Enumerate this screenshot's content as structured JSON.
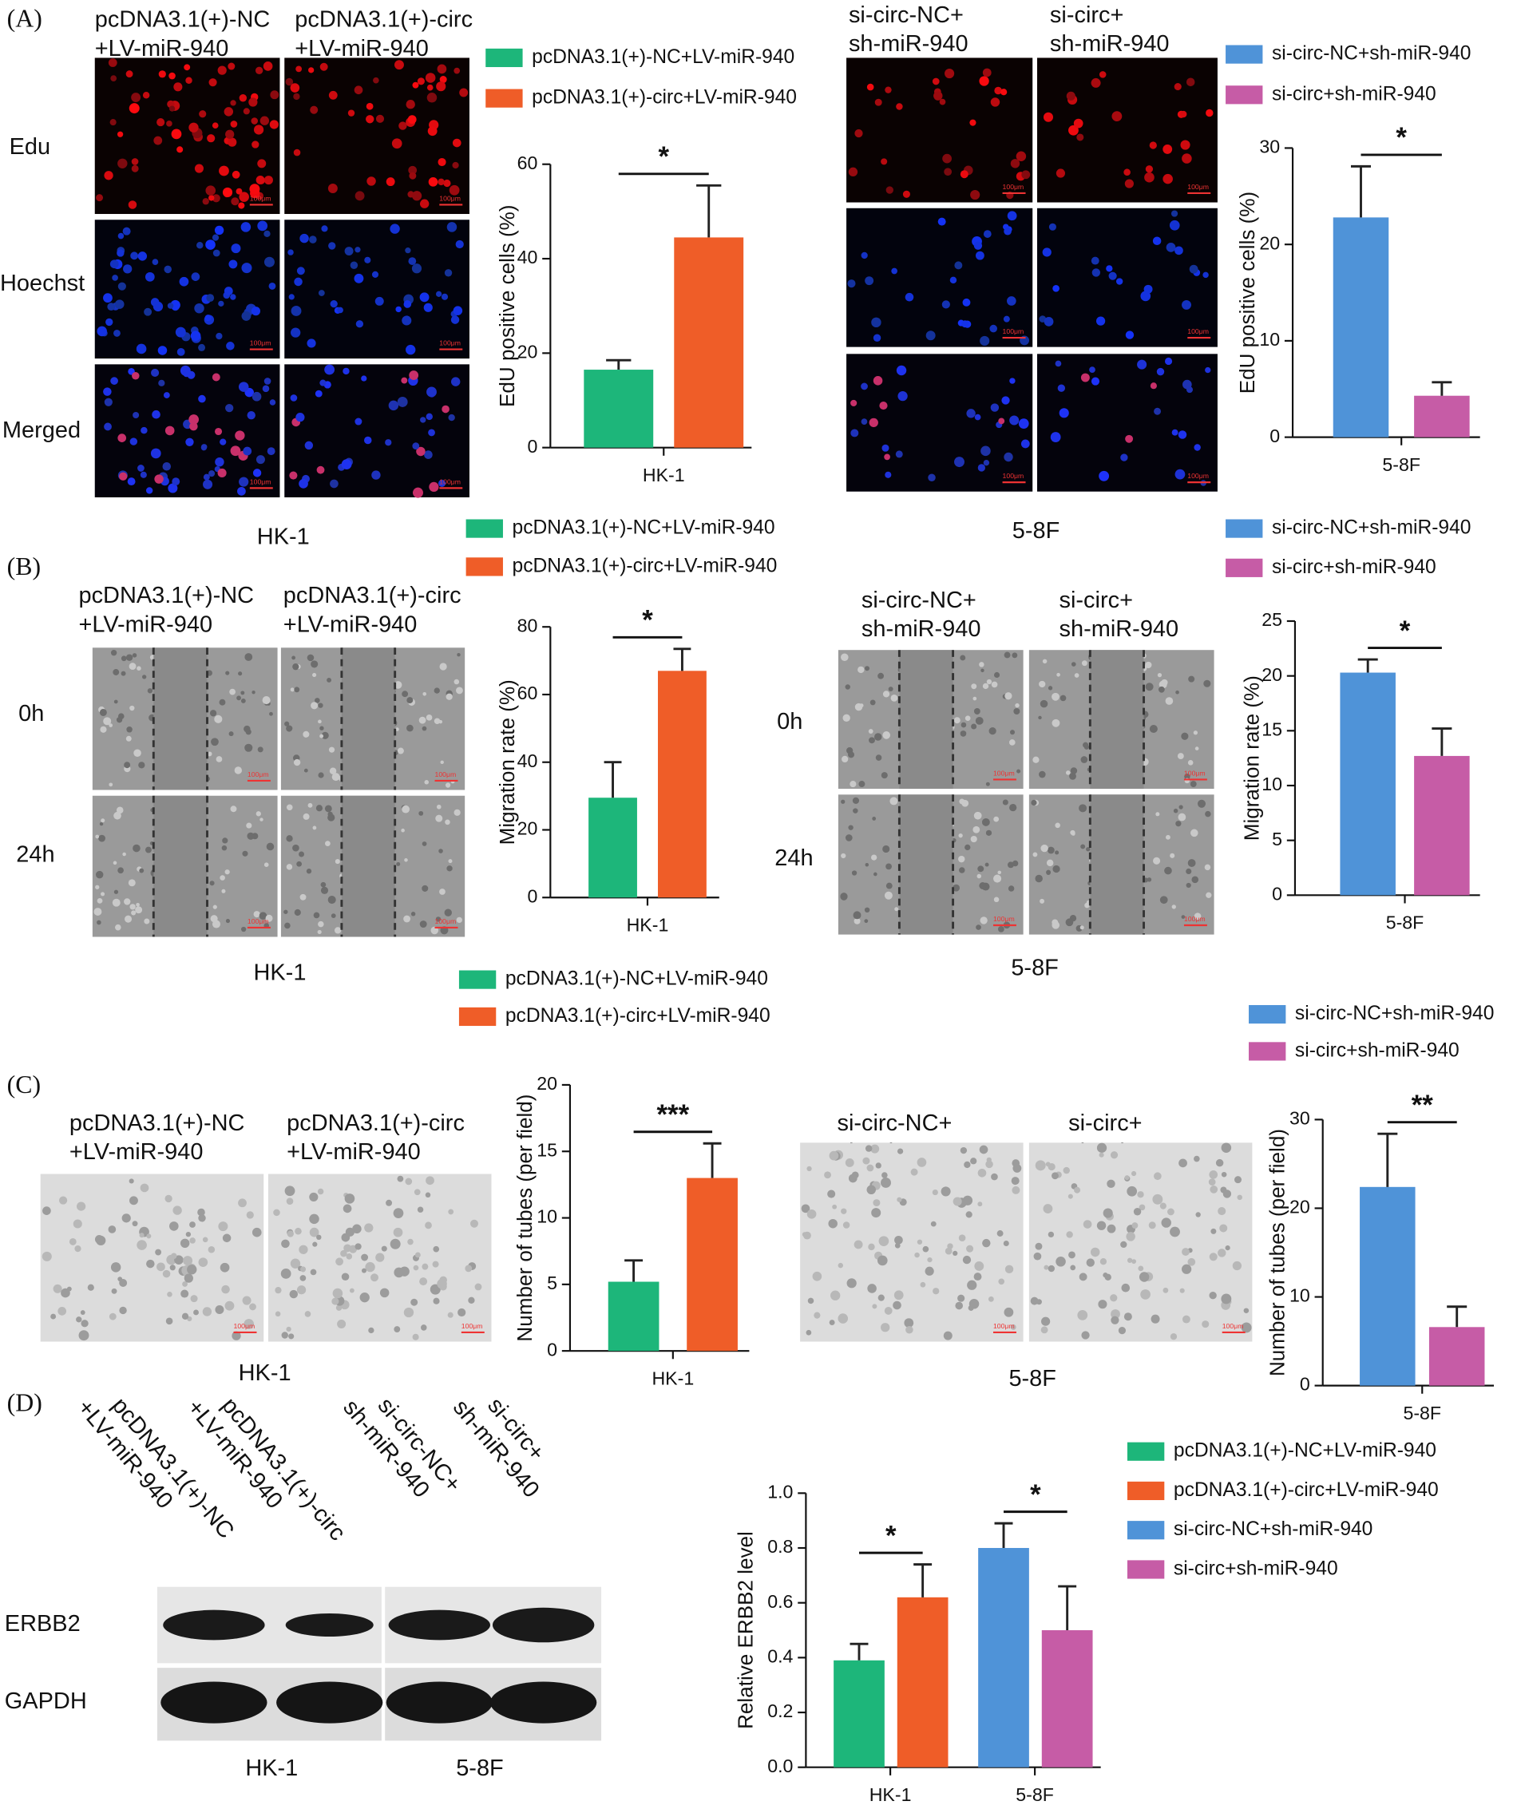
{
  "panel_labels": [
    "(A)",
    "(B)",
    "(C)",
    "(D)"
  ],
  "image_columns": {
    "nc": [
      "pcDNA3.1(+)-NC",
      "+LV-miR-940"
    ],
    "circ": [
      "pcDNA3.1(+)-circ",
      "+LV-miR-940"
    ],
    "si_nc": [
      "si-circ-NC+",
      "sh-miR-940"
    ],
    "si": [
      "si-circ+",
      "sh-miR-940"
    ]
  },
  "cell_lines": [
    "HK-1",
    "5-8F"
  ],
  "edu_rows": [
    "Edu",
    "Hoechst",
    "Merged"
  ],
  "time_rows": [
    "0h",
    "24h"
  ],
  "blot_rows": [
    "ERBB2",
    "GAPDH"
  ],
  "scale_bar": "100μm",
  "chart_data": [
    {
      "type": "bar",
      "ylabel": "EdU positive cells (%)",
      "categories": [
        "HK-1"
      ],
      "series": [
        {
          "name": "pcDNA3.1(+)-NC+LV-miR-940",
          "color": "#1db67a",
          "values": [
            16.5
          ],
          "errors": [
            2
          ]
        },
        {
          "name": "pcDNA3.1(+)-circ+LV-miR-940",
          "color": "#ef5d28",
          "values": [
            44.5
          ],
          "errors": [
            11
          ]
        }
      ],
      "ylim": [
        0,
        60
      ],
      "yticks": [
        0,
        20,
        40,
        60
      ],
      "significance": [
        "*"
      ]
    },
    {
      "type": "bar",
      "ylabel": "EdU positive cells (%)",
      "categories": [
        "5-8F"
      ],
      "series": [
        {
          "name": "si-circ-NC+sh-miR-940",
          "color": "#4f93d8",
          "values": [
            22.8
          ],
          "errors": [
            5.3
          ]
        },
        {
          "name": "si-circ+sh-miR-940",
          "color": "#c65ca6",
          "values": [
            4.3
          ],
          "errors": [
            1.4
          ]
        }
      ],
      "ylim": [
        0,
        30
      ],
      "yticks": [
        0,
        10,
        20,
        30
      ],
      "significance": [
        "*"
      ]
    },
    {
      "type": "bar",
      "ylabel": "Migration rate (%)",
      "categories": [
        "HK-1"
      ],
      "series": [
        {
          "name": "pcDNA3.1(+)-NC+LV-miR-940",
          "color": "#1db67a",
          "values": [
            29.5
          ],
          "errors": [
            10.5
          ]
        },
        {
          "name": "pcDNA3.1(+)-circ+LV-miR-940",
          "color": "#ef5d28",
          "values": [
            67
          ],
          "errors": [
            6.5
          ]
        }
      ],
      "ylim": [
        0,
        80
      ],
      "yticks": [
        0,
        20,
        40,
        60,
        80
      ],
      "significance": [
        "*"
      ]
    },
    {
      "type": "bar",
      "ylabel": "Migration rate (%)",
      "categories": [
        "5-8F"
      ],
      "series": [
        {
          "name": "si-circ-NC+sh-miR-940",
          "color": "#4f93d8",
          "values": [
            20.3
          ],
          "errors": [
            1.2
          ]
        },
        {
          "name": "si-circ+sh-miR-940",
          "color": "#c65ca6",
          "values": [
            12.7
          ],
          "errors": [
            2.5
          ]
        }
      ],
      "ylim": [
        0,
        25
      ],
      "yticks": [
        0,
        5,
        10,
        15,
        20,
        25
      ],
      "significance": [
        "*"
      ]
    },
    {
      "type": "bar",
      "ylabel": "Number of tubes (per field)",
      "categories": [
        "HK-1"
      ],
      "series": [
        {
          "name": "pcDNA3.1(+)-NC+LV-miR-940",
          "color": "#1db67a",
          "values": [
            5.2
          ],
          "errors": [
            1.6
          ]
        },
        {
          "name": "pcDNA3.1(+)-circ+LV-miR-940",
          "color": "#ef5d28",
          "values": [
            13
          ],
          "errors": [
            2.6
          ]
        }
      ],
      "ylim": [
        0,
        20
      ],
      "yticks": [
        0,
        5,
        10,
        15,
        20
      ],
      "significance": [
        "***"
      ]
    },
    {
      "type": "bar",
      "ylabel": "Number of tubes (per field)",
      "categories": [
        "5-8F"
      ],
      "series": [
        {
          "name": "si-circ-NC+sh-miR-940",
          "color": "#4f93d8",
          "values": [
            22.4
          ],
          "errors": [
            6
          ]
        },
        {
          "name": "si-circ+sh-miR-940",
          "color": "#c65ca6",
          "values": [
            6.6
          ],
          "errors": [
            2.3
          ]
        }
      ],
      "ylim": [
        0,
        30
      ],
      "yticks": [
        0,
        10,
        20,
        30
      ],
      "significance": [
        "**"
      ]
    },
    {
      "type": "bar",
      "ylabel": "Relative ERBB2 level",
      "categories": [
        "HK-1",
        "5-8F"
      ],
      "series": [
        {
          "name": "pcDNA3.1(+)-NC+LV-miR-940",
          "color": "#1db67a",
          "values": [
            0.39,
            null
          ],
          "errors": [
            0.06,
            null
          ]
        },
        {
          "name": "pcDNA3.1(+)-circ+LV-miR-940",
          "color": "#ef5d28",
          "values": [
            0.62,
            null
          ],
          "errors": [
            0.12,
            null
          ]
        },
        {
          "name": "si-circ-NC+sh-miR-940",
          "color": "#4f93d8",
          "values": [
            null,
            0.8
          ],
          "errors": [
            null,
            0.09
          ]
        },
        {
          "name": "si-circ+sh-miR-940",
          "color": "#c65ca6",
          "values": [
            null,
            0.5
          ],
          "errors": [
            null,
            0.16
          ]
        }
      ],
      "ylim": [
        0,
        1
      ],
      "yticks": [
        {
          "value": 0,
          "label": "0.0"
        },
        0.2,
        0.4,
        0.6,
        0.8,
        {
          "value": 1,
          "label": "1.0"
        }
      ],
      "significance": [
        "*",
        "*"
      ]
    }
  ]
}
